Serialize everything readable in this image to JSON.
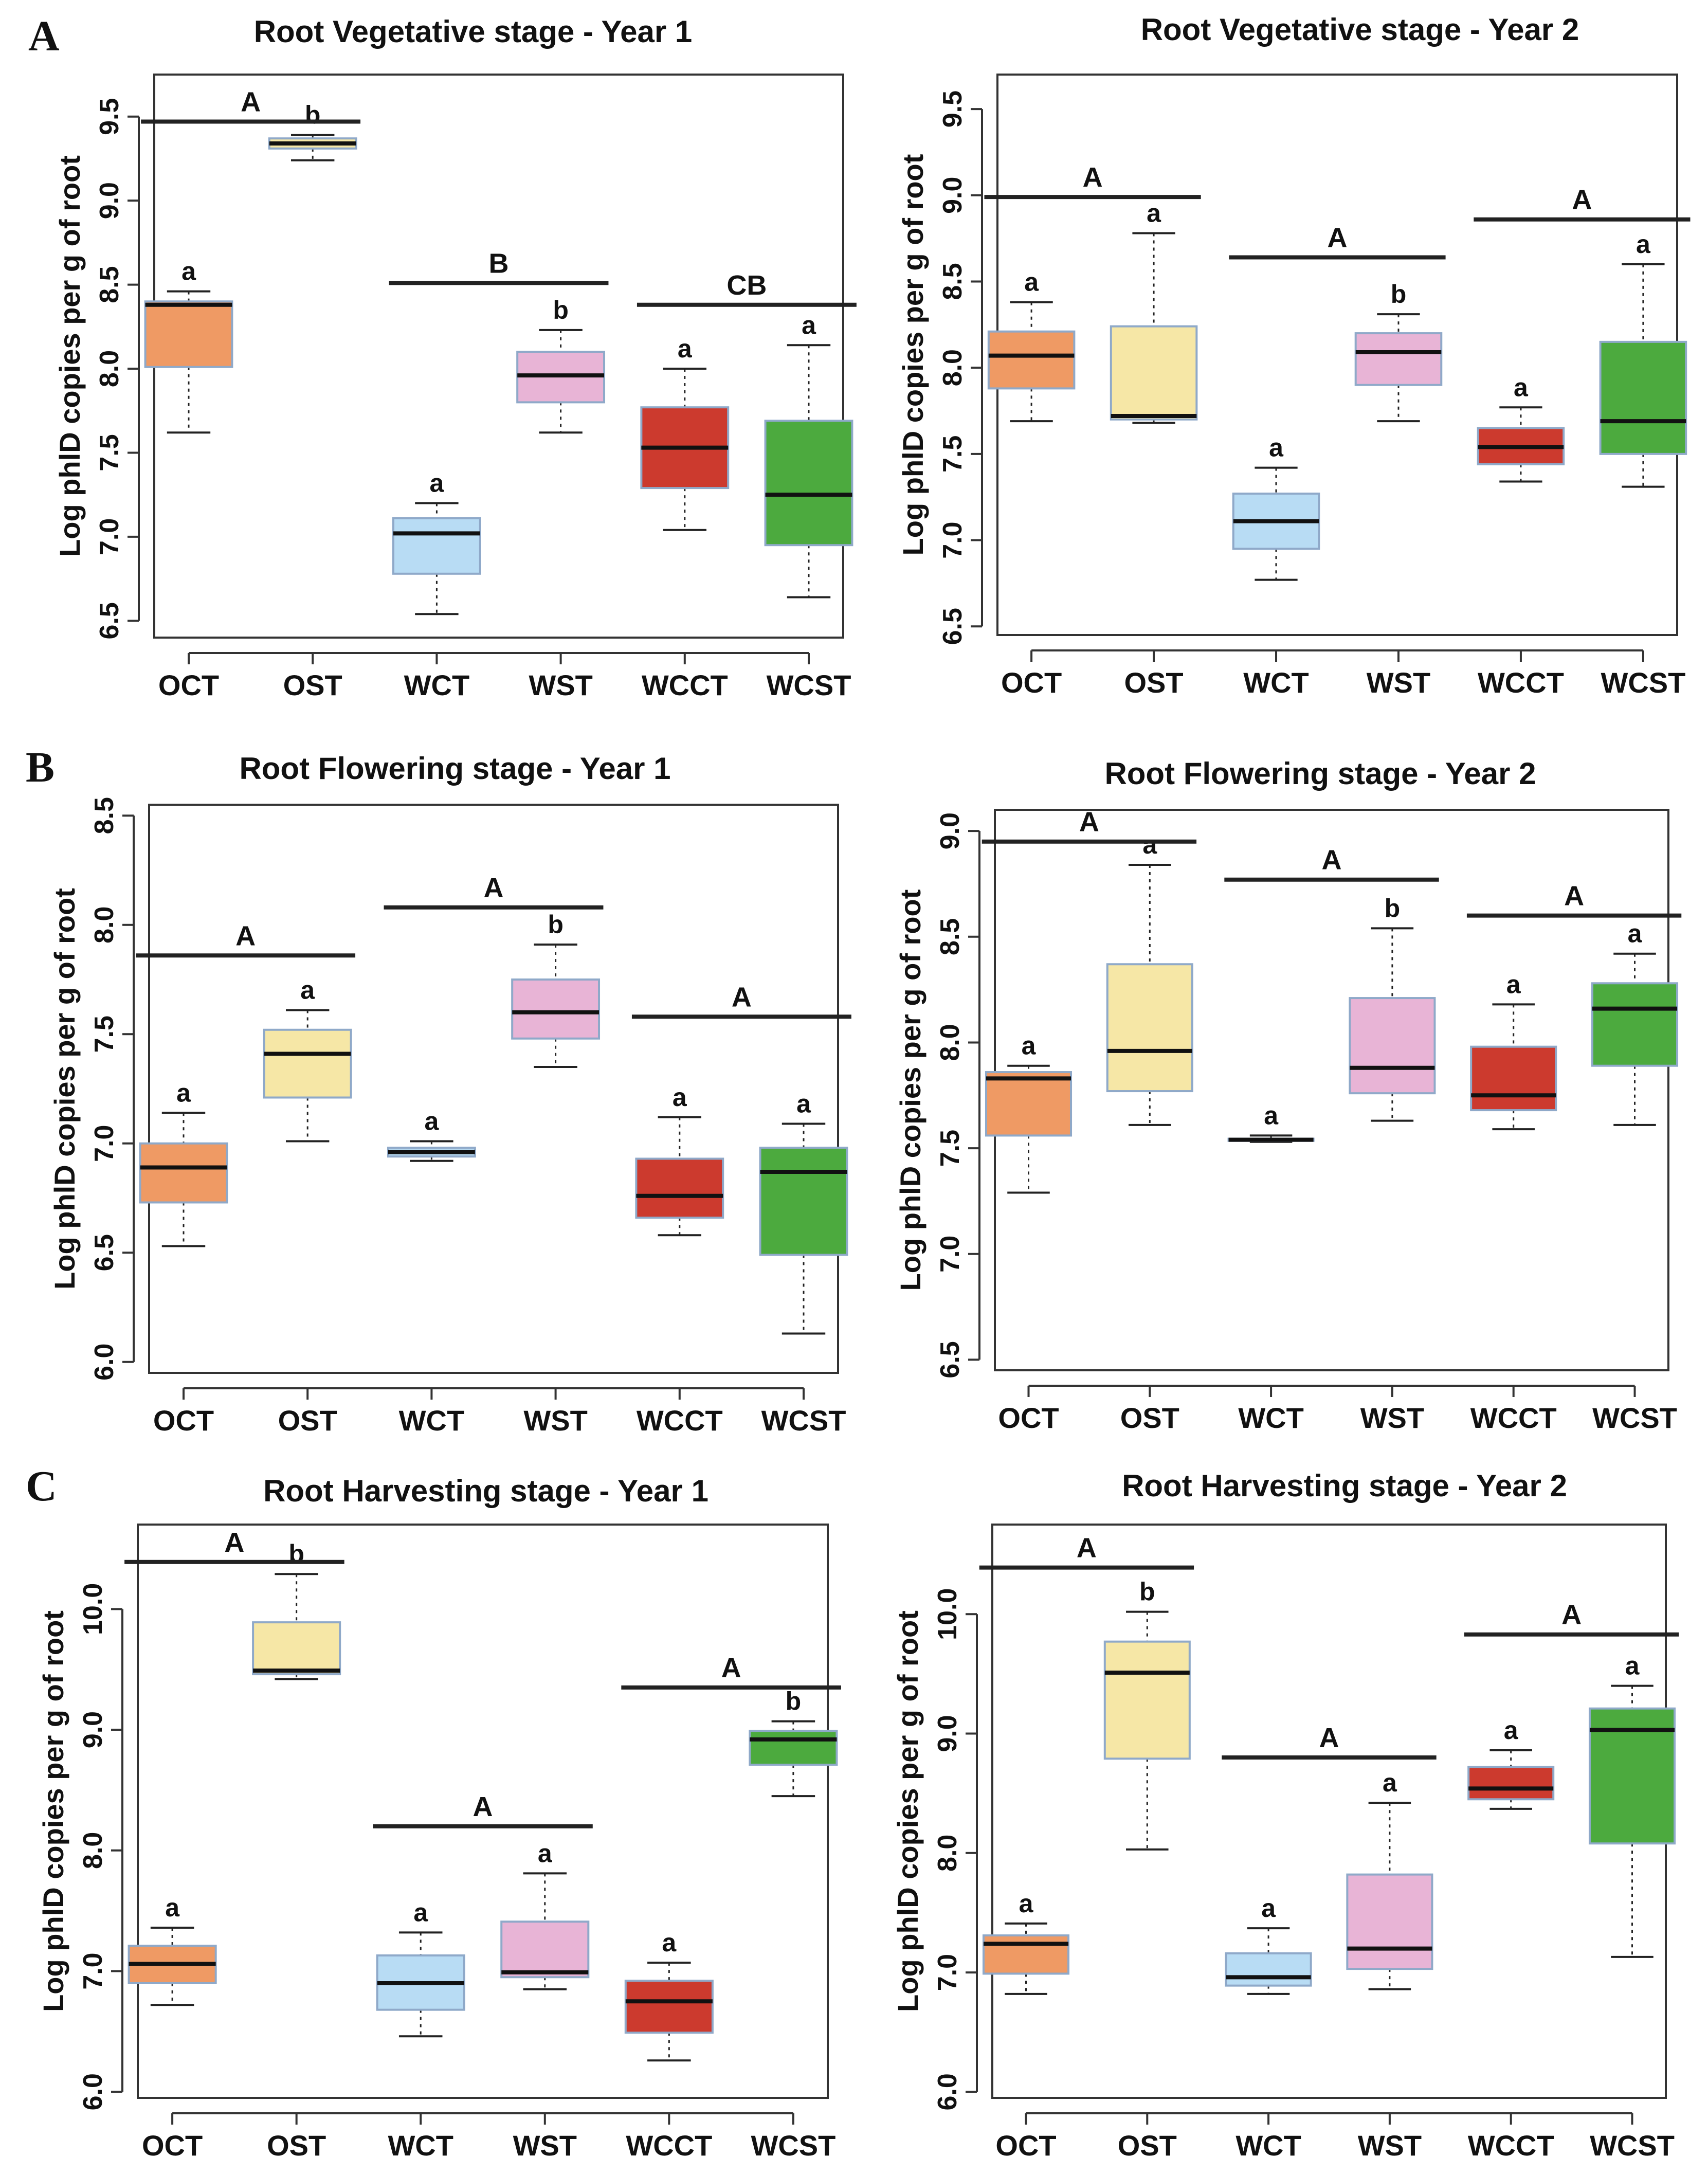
{
  "figure": {
    "panel_letters": [
      "A",
      "B",
      "C"
    ],
    "colors": {
      "OCT": "#ef9a64",
      "OST": "#f6e7a6",
      "WCT": "#b8dcf4",
      "WST": "#e8b4d6",
      "WCCT": "#cc3a2e",
      "WCST": "#4caa3e",
      "box_border": "#8fa9c9",
      "line": "#222222"
    }
  },
  "chart_data": [
    {
      "type": "box",
      "panel": "A",
      "title": "Root Vegetative stage - Year 1",
      "ylabel": "Log phlD copies per g of root",
      "ylim": [
        6.4,
        9.75
      ],
      "yticks": [
        "6.5",
        "7.0",
        "7.5",
        "8.0",
        "8.5",
        "9.0",
        "9.5"
      ],
      "categories": [
        "OCT",
        "OST",
        "WCT",
        "WST",
        "WCCT",
        "WCST"
      ],
      "boxes": [
        {
          "min": 7.62,
          "q1": 8.01,
          "median": 8.38,
          "q3": 8.4,
          "max": 8.46,
          "label": "a"
        },
        {
          "min": 9.24,
          "q1": 9.31,
          "median": 9.34,
          "q3": 9.37,
          "max": 9.39,
          "label": "b"
        },
        {
          "min": 6.54,
          "q1": 6.78,
          "median": 7.02,
          "q3": 7.11,
          "max": 7.2,
          "label": "a"
        },
        {
          "min": 7.62,
          "q1": 7.8,
          "median": 7.96,
          "q3": 8.1,
          "max": 8.23,
          "label": "b"
        },
        {
          "min": 7.04,
          "q1": 7.29,
          "median": 7.53,
          "q3": 7.77,
          "max": 8.0,
          "label": "a"
        },
        {
          "min": 6.64,
          "q1": 6.95,
          "median": 7.25,
          "q3": 7.69,
          "max": 8.14,
          "label": "a"
        }
      ],
      "groups": [
        {
          "from": 0,
          "to": 1,
          "label": "A",
          "y": 9.47
        },
        {
          "from": 2,
          "to": 3,
          "label": "B",
          "y": 8.51
        },
        {
          "from": 4,
          "to": 5,
          "label": "CB",
          "y": 8.38
        }
      ]
    },
    {
      "type": "box",
      "panel": "",
      "title": "Root Vegetative stage - Year 2",
      "ylabel": "Log phlD copies per g of root",
      "ylim": [
        6.45,
        9.7
      ],
      "yticks": [
        "6.5",
        "7.0",
        "7.5",
        "8.0",
        "8.5",
        "9.0",
        "9.5"
      ],
      "categories": [
        "OCT",
        "OST",
        "WCT",
        "WST",
        "WCCT",
        "WCST"
      ],
      "boxes": [
        {
          "min": 7.69,
          "q1": 7.88,
          "median": 8.07,
          "q3": 8.21,
          "max": 8.38,
          "label": "a"
        },
        {
          "min": 7.68,
          "q1": 7.7,
          "median": 7.72,
          "q3": 8.24,
          "max": 8.78,
          "label": "a"
        },
        {
          "min": 6.77,
          "q1": 6.95,
          "median": 7.11,
          "q3": 7.27,
          "max": 7.42,
          "label": "a"
        },
        {
          "min": 7.69,
          "q1": 7.9,
          "median": 8.09,
          "q3": 8.2,
          "max": 8.31,
          "label": "b"
        },
        {
          "min": 7.34,
          "q1": 7.44,
          "median": 7.54,
          "q3": 7.65,
          "max": 7.77,
          "label": "a"
        },
        {
          "min": 7.31,
          "q1": 7.5,
          "median": 7.69,
          "q3": 8.15,
          "max": 8.6,
          "label": "a"
        }
      ],
      "groups": [
        {
          "from": 0,
          "to": 1,
          "label": "A",
          "y": 8.99
        },
        {
          "from": 2,
          "to": 3,
          "label": "A",
          "y": 8.64
        },
        {
          "from": 4,
          "to": 5,
          "label": "A",
          "y": 8.86
        }
      ]
    },
    {
      "type": "box",
      "panel": "B",
      "title": "Root Flowering stage - Year 1",
      "ylabel": "Log phlD copies per g of root",
      "ylim": [
        5.95,
        8.55
      ],
      "yticks": [
        "6.0",
        "6.5",
        "7.0",
        "7.5",
        "8.0",
        "8.5"
      ],
      "categories": [
        "OCT",
        "OST",
        "WCT",
        "WST",
        "WCCT",
        "WCST"
      ],
      "boxes": [
        {
          "min": 6.53,
          "q1": 6.73,
          "median": 6.89,
          "q3": 7.0,
          "max": 7.14,
          "label": "a"
        },
        {
          "min": 7.01,
          "q1": 7.21,
          "median": 7.41,
          "q3": 7.52,
          "max": 7.61,
          "label": "a"
        },
        {
          "min": 6.92,
          "q1": 6.94,
          "median": 6.96,
          "q3": 6.98,
          "max": 7.01,
          "label": "a"
        },
        {
          "min": 7.35,
          "q1": 7.48,
          "median": 7.6,
          "q3": 7.75,
          "max": 7.91,
          "label": "b"
        },
        {
          "min": 6.58,
          "q1": 6.66,
          "median": 6.76,
          "q3": 6.93,
          "max": 7.12,
          "label": "a"
        },
        {
          "min": 6.13,
          "q1": 6.49,
          "median": 6.87,
          "q3": 6.98,
          "max": 7.09,
          "label": "a"
        }
      ],
      "groups": [
        {
          "from": 0,
          "to": 1,
          "label": "A",
          "y": 7.86
        },
        {
          "from": 2,
          "to": 3,
          "label": "A",
          "y": 8.08
        },
        {
          "from": 4,
          "to": 5,
          "label": "A",
          "y": 7.58
        }
      ]
    },
    {
      "type": "box",
      "panel": "",
      "title": "Root Flowering stage - Year 2",
      "ylabel": "Log phlD copies per g of root",
      "ylim": [
        6.45,
        9.1
      ],
      "yticks": [
        "6.5",
        "7.0",
        "7.5",
        "8.0",
        "8.5",
        "9.0"
      ],
      "categories": [
        "OCT",
        "OST",
        "WCT",
        "WST",
        "WCCT",
        "WCST"
      ],
      "boxes": [
        {
          "min": 7.29,
          "q1": 7.56,
          "median": 7.83,
          "q3": 7.86,
          "max": 7.89,
          "label": "a"
        },
        {
          "min": 7.61,
          "q1": 7.77,
          "median": 7.96,
          "q3": 8.37,
          "max": 8.84,
          "label": "a"
        },
        {
          "min": 7.53,
          "q1": 7.535,
          "median": 7.54,
          "q3": 7.545,
          "max": 7.56,
          "label": "a"
        },
        {
          "min": 7.63,
          "q1": 7.76,
          "median": 7.88,
          "q3": 8.21,
          "max": 8.54,
          "label": "b"
        },
        {
          "min": 7.59,
          "q1": 7.68,
          "median": 7.75,
          "q3": 7.98,
          "max": 8.18,
          "label": "a"
        },
        {
          "min": 7.61,
          "q1": 7.89,
          "median": 8.16,
          "q3": 8.28,
          "max": 8.42,
          "label": "a"
        }
      ],
      "groups": [
        {
          "from": 0,
          "to": 1,
          "label": "A",
          "y": 8.95
        },
        {
          "from": 2,
          "to": 3,
          "label": "A",
          "y": 8.77
        },
        {
          "from": 4,
          "to": 5,
          "label": "A",
          "y": 8.6
        }
      ]
    },
    {
      "type": "box",
      "panel": "C",
      "title": "Root Harvesting stage - Year 1",
      "ylabel": "Log phlD copies per g of root",
      "ylim": [
        5.95,
        10.7
      ],
      "yticks": [
        "6.0",
        "7.0",
        "8.0",
        "9.0",
        "10.0"
      ],
      "categories": [
        "OCT",
        "OST",
        "WCT",
        "WST",
        "WCCT",
        "WCST"
      ],
      "boxes": [
        {
          "min": 6.72,
          "q1": 6.9,
          "median": 7.06,
          "q3": 7.21,
          "max": 7.36,
          "label": "a"
        },
        {
          "min": 9.42,
          "q1": 9.46,
          "median": 9.49,
          "q3": 9.89,
          "max": 10.29,
          "label": "b"
        },
        {
          "min": 6.46,
          "q1": 6.68,
          "median": 6.9,
          "q3": 7.13,
          "max": 7.32,
          "label": "a"
        },
        {
          "min": 6.85,
          "q1": 6.95,
          "median": 6.99,
          "q3": 7.41,
          "max": 7.81,
          "label": "a"
        },
        {
          "min": 6.26,
          "q1": 6.49,
          "median": 6.75,
          "q3": 6.92,
          "max": 7.07,
          "label": "a"
        },
        {
          "min": 8.45,
          "q1": 8.71,
          "median": 8.92,
          "q3": 8.99,
          "max": 9.07,
          "label": "b"
        }
      ],
      "groups": [
        {
          "from": 0,
          "to": 1,
          "label": "A",
          "y": 10.39
        },
        {
          "from": 2,
          "to": 3,
          "label": "A",
          "y": 8.2
        },
        {
          "from": 4,
          "to": 5,
          "label": "A",
          "y": 9.35
        }
      ]
    },
    {
      "type": "box",
      "panel": "",
      "title": "Root  Harvesting stage - Year 2",
      "ylabel": "Log phlD copies per g of root",
      "ylim": [
        5.95,
        10.75
      ],
      "yticks": [
        "6.0",
        "7.0",
        "8.0",
        "9.0",
        "10.0"
      ],
      "categories": [
        "OCT",
        "OST",
        "WCT",
        "WST",
        "WCCT",
        "WCST"
      ],
      "boxes": [
        {
          "min": 6.82,
          "q1": 6.99,
          "median": 7.24,
          "q3": 7.31,
          "max": 7.41,
          "label": "a"
        },
        {
          "min": 8.03,
          "q1": 8.79,
          "median": 9.51,
          "q3": 9.77,
          "max": 10.02,
          "label": "b"
        },
        {
          "min": 6.82,
          "q1": 6.89,
          "median": 6.96,
          "q3": 7.16,
          "max": 7.37,
          "label": "a"
        },
        {
          "min": 6.86,
          "q1": 7.03,
          "median": 7.2,
          "q3": 7.82,
          "max": 8.42,
          "label": "a"
        },
        {
          "min": 8.37,
          "q1": 8.45,
          "median": 8.54,
          "q3": 8.72,
          "max": 8.86,
          "label": "a"
        },
        {
          "min": 7.13,
          "q1": 8.08,
          "median": 9.03,
          "q3": 9.21,
          "max": 9.4,
          "label": "a"
        }
      ],
      "groups": [
        {
          "from": 0,
          "to": 1,
          "label": "A",
          "y": 10.39
        },
        {
          "from": 2,
          "to": 3,
          "label": "A",
          "y": 8.8
        },
        {
          "from": 4,
          "to": 5,
          "label": "A",
          "y": 9.83
        }
      ]
    }
  ]
}
